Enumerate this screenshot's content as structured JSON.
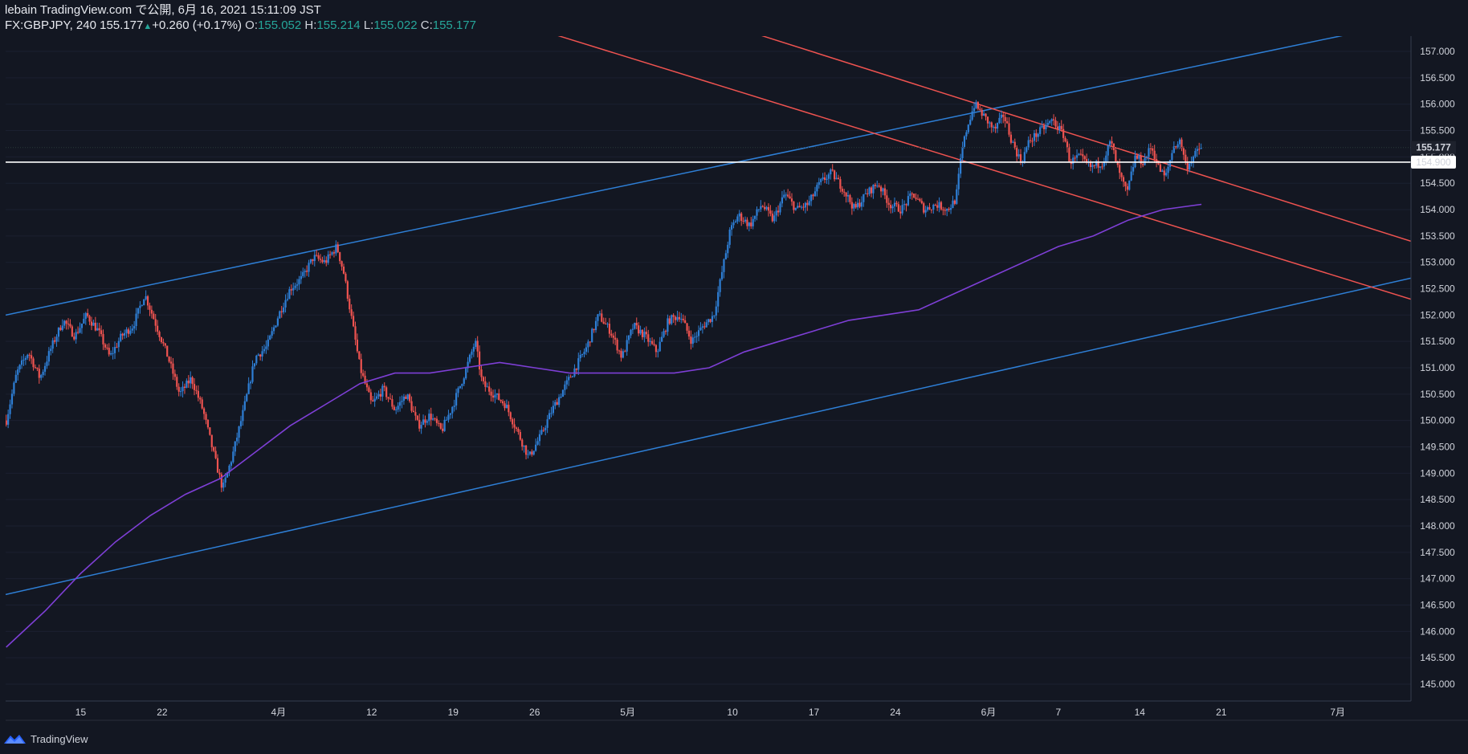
{
  "header": {
    "publish_line": "lebain TradingView.com で公開, 6月 16, 2021 15:11:09 JST",
    "symbol": "FX:GBPJPY, 240",
    "last": "155.177",
    "change": "+0.260 (+0.17%)",
    "o_label": "O:",
    "o_value": "155.052",
    "h_label": "H:",
    "h_value": "155.214",
    "l_label": "L:",
    "l_value": "155.022",
    "c_label": "C:",
    "c_value": "155.177"
  },
  "footer": {
    "brand": "TradingView"
  },
  "colors": {
    "background": "#131722",
    "up_candle": "#2e7fd6",
    "down_candle": "#ef5350",
    "channel_blue": "#2e7fd6",
    "channel_red": "#ef5350",
    "moving_average": "#7e3fd6",
    "horizontal_line": "#ffffff"
  },
  "chart_data": {
    "type": "candlestick",
    "symbol": "FX:GBPJPY",
    "interval": "240",
    "ylim": [
      144.68,
      157.29
    ],
    "y_ticks": [
      "145.000",
      "145.500",
      "146.000",
      "146.500",
      "147.000",
      "147.500",
      "148.000",
      "148.500",
      "149.000",
      "149.500",
      "150.000",
      "150.500",
      "151.000",
      "151.500",
      "152.000",
      "152.500",
      "153.000",
      "153.500",
      "154.000",
      "154.500",
      "155.000",
      "155.500",
      "156.000",
      "156.500",
      "157.000"
    ],
    "x_ticks": [
      {
        "label": "15",
        "day": 15
      },
      {
        "label": "22",
        "day": 22
      },
      {
        "label": "4月",
        "day": 32
      },
      {
        "label": "12",
        "day": 40
      },
      {
        "label": "19",
        "day": 47
      },
      {
        "label": "26",
        "day": 54
      },
      {
        "label": "5月",
        "day": 62
      },
      {
        "label": "10",
        "day": 71
      },
      {
        "label": "17",
        "day": 78
      },
      {
        "label": "24",
        "day": 85
      },
      {
        "label": "6月",
        "day": 93
      },
      {
        "label": "7",
        "day": 99
      },
      {
        "label": "14",
        "day": 106
      },
      {
        "label": "21",
        "day": 113
      },
      {
        "label": "7月",
        "day": 123
      }
    ],
    "x_range_days": [
      8.55,
      129.3
    ],
    "last_price_label": "155.177",
    "last_price": 155.177,
    "horizontal_level_label": "154.900",
    "horizontal_level": 154.9,
    "price_path": [
      [
        8.6,
        150.0
      ],
      [
        9.5,
        150.9
      ],
      [
        10.5,
        151.3
      ],
      [
        11.5,
        150.8
      ],
      [
        12.5,
        151.4
      ],
      [
        13.5,
        151.9
      ],
      [
        14.5,
        151.6
      ],
      [
        15.5,
        152.0
      ],
      [
        16.5,
        151.7
      ],
      [
        17.5,
        151.2
      ],
      [
        18.5,
        151.6
      ],
      [
        19.5,
        151.8
      ],
      [
        20.5,
        152.4
      ],
      [
        21.5,
        151.8
      ],
      [
        22.5,
        151.2
      ],
      [
        23.5,
        150.5
      ],
      [
        24.5,
        150.8
      ],
      [
        25.5,
        150.2
      ],
      [
        26.5,
        149.3
      ],
      [
        27.2,
        148.7
      ],
      [
        28.0,
        149.3
      ],
      [
        29.0,
        150.2
      ],
      [
        30.0,
        151.2
      ],
      [
        31.0,
        151.4
      ],
      [
        32.0,
        152.0
      ],
      [
        33.0,
        152.5
      ],
      [
        34.0,
        152.7
      ],
      [
        35.0,
        153.1
      ],
      [
        36.0,
        153.0
      ],
      [
        37.0,
        153.3
      ],
      [
        37.6,
        152.8
      ],
      [
        38.3,
        151.9
      ],
      [
        39.0,
        151.0
      ],
      [
        40.0,
        150.3
      ],
      [
        41.0,
        150.6
      ],
      [
        42.0,
        150.2
      ],
      [
        43.0,
        150.5
      ],
      [
        44.0,
        149.9
      ],
      [
        45.0,
        150.1
      ],
      [
        46.0,
        149.8
      ],
      [
        47.0,
        150.3
      ],
      [
        48.0,
        150.9
      ],
      [
        48.9,
        151.5
      ],
      [
        49.5,
        150.7
      ],
      [
        50.5,
        150.5
      ],
      [
        51.5,
        150.3
      ],
      [
        52.5,
        149.8
      ],
      [
        53.5,
        149.3
      ],
      [
        54.5,
        149.7
      ],
      [
        55.5,
        150.2
      ],
      [
        56.5,
        150.6
      ],
      [
        57.5,
        151.0
      ],
      [
        58.5,
        151.4
      ],
      [
        59.5,
        152.0
      ],
      [
        60.5,
        151.7
      ],
      [
        61.5,
        151.2
      ],
      [
        62.5,
        151.8
      ],
      [
        63.5,
        151.6
      ],
      [
        64.5,
        151.3
      ],
      [
        65.5,
        151.9
      ],
      [
        66.5,
        152.0
      ],
      [
        67.5,
        151.5
      ],
      [
        68.5,
        151.8
      ],
      [
        69.4,
        152.0
      ],
      [
        70.0,
        152.7
      ],
      [
        70.8,
        153.6
      ],
      [
        71.5,
        153.9
      ],
      [
        72.5,
        153.7
      ],
      [
        73.5,
        154.1
      ],
      [
        74.5,
        153.8
      ],
      [
        75.5,
        154.3
      ],
      [
        76.5,
        154.0
      ],
      [
        77.5,
        154.1
      ],
      [
        78.5,
        154.5
      ],
      [
        79.5,
        154.7
      ],
      [
        80.5,
        154.4
      ],
      [
        81.5,
        154.0
      ],
      [
        82.5,
        154.3
      ],
      [
        83.5,
        154.5
      ],
      [
        84.5,
        154.1
      ],
      [
        85.5,
        154.0
      ],
      [
        86.5,
        154.3
      ],
      [
        87.5,
        154.0
      ],
      [
        88.5,
        154.1
      ],
      [
        89.5,
        154.0
      ],
      [
        90.2,
        154.2
      ],
      [
        90.7,
        155.1
      ],
      [
        91.2,
        155.6
      ],
      [
        91.8,
        156.0
      ],
      [
        92.5,
        155.8
      ],
      [
        93.5,
        155.5
      ],
      [
        94.3,
        155.8
      ],
      [
        95.0,
        155.3
      ],
      [
        95.8,
        154.9
      ],
      [
        96.5,
        155.3
      ],
      [
        97.5,
        155.5
      ],
      [
        98.5,
        155.7
      ],
      [
        99.5,
        155.4
      ],
      [
        100.0,
        154.9
      ],
      [
        100.8,
        155.0
      ],
      [
        101.8,
        154.8
      ],
      [
        102.8,
        154.9
      ],
      [
        103.5,
        155.3
      ],
      [
        104.2,
        154.7
      ],
      [
        104.9,
        154.3
      ],
      [
        105.6,
        155.0
      ],
      [
        106.3,
        154.9
      ],
      [
        107.0,
        155.2
      ],
      [
        107.6,
        154.8
      ],
      [
        108.2,
        154.6
      ],
      [
        108.9,
        155.2
      ],
      [
        109.5,
        155.3
      ],
      [
        110.0,
        154.8
      ],
      [
        110.6,
        155.0
      ],
      [
        111.3,
        155.2
      ]
    ],
    "moving_average": [
      [
        8.6,
        145.7
      ],
      [
        12,
        146.4
      ],
      [
        15,
        147.1
      ],
      [
        18,
        147.7
      ],
      [
        21,
        148.2
      ],
      [
        24,
        148.6
      ],
      [
        27,
        148.9
      ],
      [
        30,
        149.4
      ],
      [
        33,
        149.9
      ],
      [
        36,
        150.3
      ],
      [
        39,
        150.7
      ],
      [
        42,
        150.9
      ],
      [
        45,
        150.9
      ],
      [
        48,
        151.0
      ],
      [
        51,
        151.1
      ],
      [
        54,
        151.0
      ],
      [
        57,
        150.9
      ],
      [
        60,
        150.9
      ],
      [
        63,
        150.9
      ],
      [
        66,
        150.9
      ],
      [
        69,
        151.0
      ],
      [
        72,
        151.3
      ],
      [
        75,
        151.5
      ],
      [
        78,
        151.7
      ],
      [
        81,
        151.9
      ],
      [
        84,
        152.0
      ],
      [
        87,
        152.1
      ],
      [
        90,
        152.4
      ],
      [
        93,
        152.7
      ],
      [
        96,
        153.0
      ],
      [
        99,
        153.3
      ],
      [
        102,
        153.5
      ],
      [
        105,
        153.8
      ],
      [
        108,
        154.0
      ],
      [
        111.3,
        154.1
      ]
    ],
    "trendlines": [
      {
        "name": "blue-channel-upper",
        "color": "#2e7fd6",
        "points": [
          [
            8.55,
            152.0
          ],
          [
            123.4,
            157.3
          ]
        ]
      },
      {
        "name": "blue-channel-lower",
        "color": "#2e7fd6",
        "points": [
          [
            8.55,
            146.7
          ],
          [
            129.3,
            152.7
          ]
        ]
      },
      {
        "name": "red-channel-upper",
        "color": "#ef5350",
        "points": [
          [
            73.5,
            157.3
          ],
          [
            129.3,
            153.4
          ]
        ]
      },
      {
        "name": "red-channel-lower",
        "color": "#ef5350",
        "points": [
          [
            56.0,
            157.3
          ],
          [
            129.3,
            152.3
          ]
        ]
      }
    ]
  }
}
